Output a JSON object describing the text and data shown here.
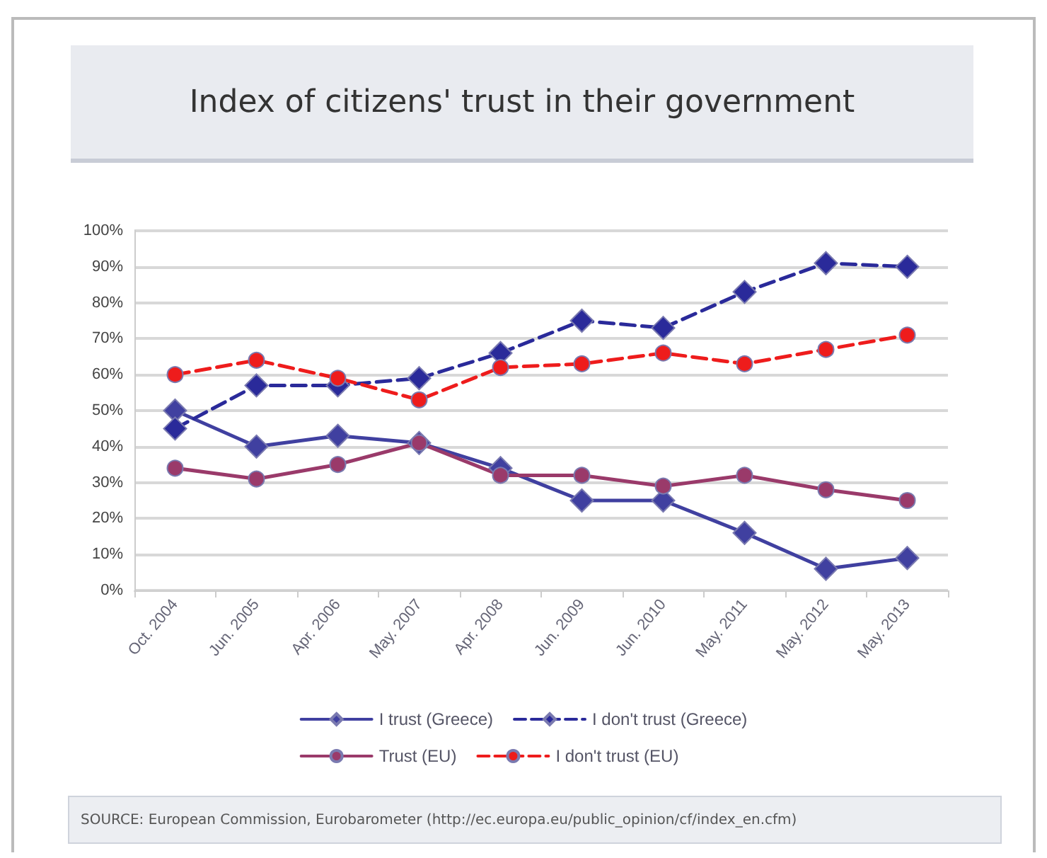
{
  "chart_data": {
    "type": "line",
    "title": "Index of citizens' trust in their government",
    "categories": [
      "Oct. 2004",
      "Jun. 2005",
      "Apr. 2006",
      "May. 2007",
      "Apr. 2008",
      "Jun. 2009",
      "Jun. 2010",
      "May. 2011",
      "May. 2012",
      "May. 2013"
    ],
    "series": [
      {
        "name": "I trust (Greece)",
        "color": "#4040a0",
        "marker": "diamond",
        "line_style": "solid",
        "values": [
          50,
          40,
          43,
          41,
          34,
          25,
          25,
          16,
          6,
          9
        ]
      },
      {
        "name": "I don't trust (Greece)",
        "color": "#2a2a9a",
        "marker": "diamond",
        "line_style": "dashed",
        "values": [
          45,
          57,
          57,
          59,
          66,
          75,
          73,
          83,
          91,
          90
        ]
      },
      {
        "name": "Trust (EU)",
        "color": "#9a3a6a",
        "marker": "circle",
        "line_style": "solid",
        "values": [
          34,
          31,
          35,
          41,
          32,
          32,
          29,
          32,
          28,
          25
        ]
      },
      {
        "name": "I don't trust (EU)",
        "color": "#ee1c1c",
        "marker": "circle",
        "line_style": "dashed",
        "values": [
          60,
          64,
          59,
          53,
          62,
          63,
          66,
          63,
          67,
          71
        ]
      }
    ],
    "ylim": [
      0,
      100
    ],
    "yticks": [
      {
        "value": 0,
        "label": "0%"
      },
      {
        "value": 10,
        "label": "10%"
      },
      {
        "value": 20,
        "label": "20%"
      },
      {
        "value": 30,
        "label": "30%"
      },
      {
        "value": 40,
        "label": "40%"
      },
      {
        "value": 50,
        "label": "50%"
      },
      {
        "value": 60,
        "label": "60%"
      },
      {
        "value": 70,
        "label": "70%"
      },
      {
        "value": 80,
        "label": "80%"
      },
      {
        "value": 90,
        "label": "90%"
      },
      {
        "value": 100,
        "label": "100%"
      }
    ],
    "grid": "y",
    "legend": "bottom",
    "annotations": [
      "SOURCE: European Commission, Eurobarometer (http://ec.europa.eu/public_opinion/cf/index_en.cfm)"
    ]
  }
}
